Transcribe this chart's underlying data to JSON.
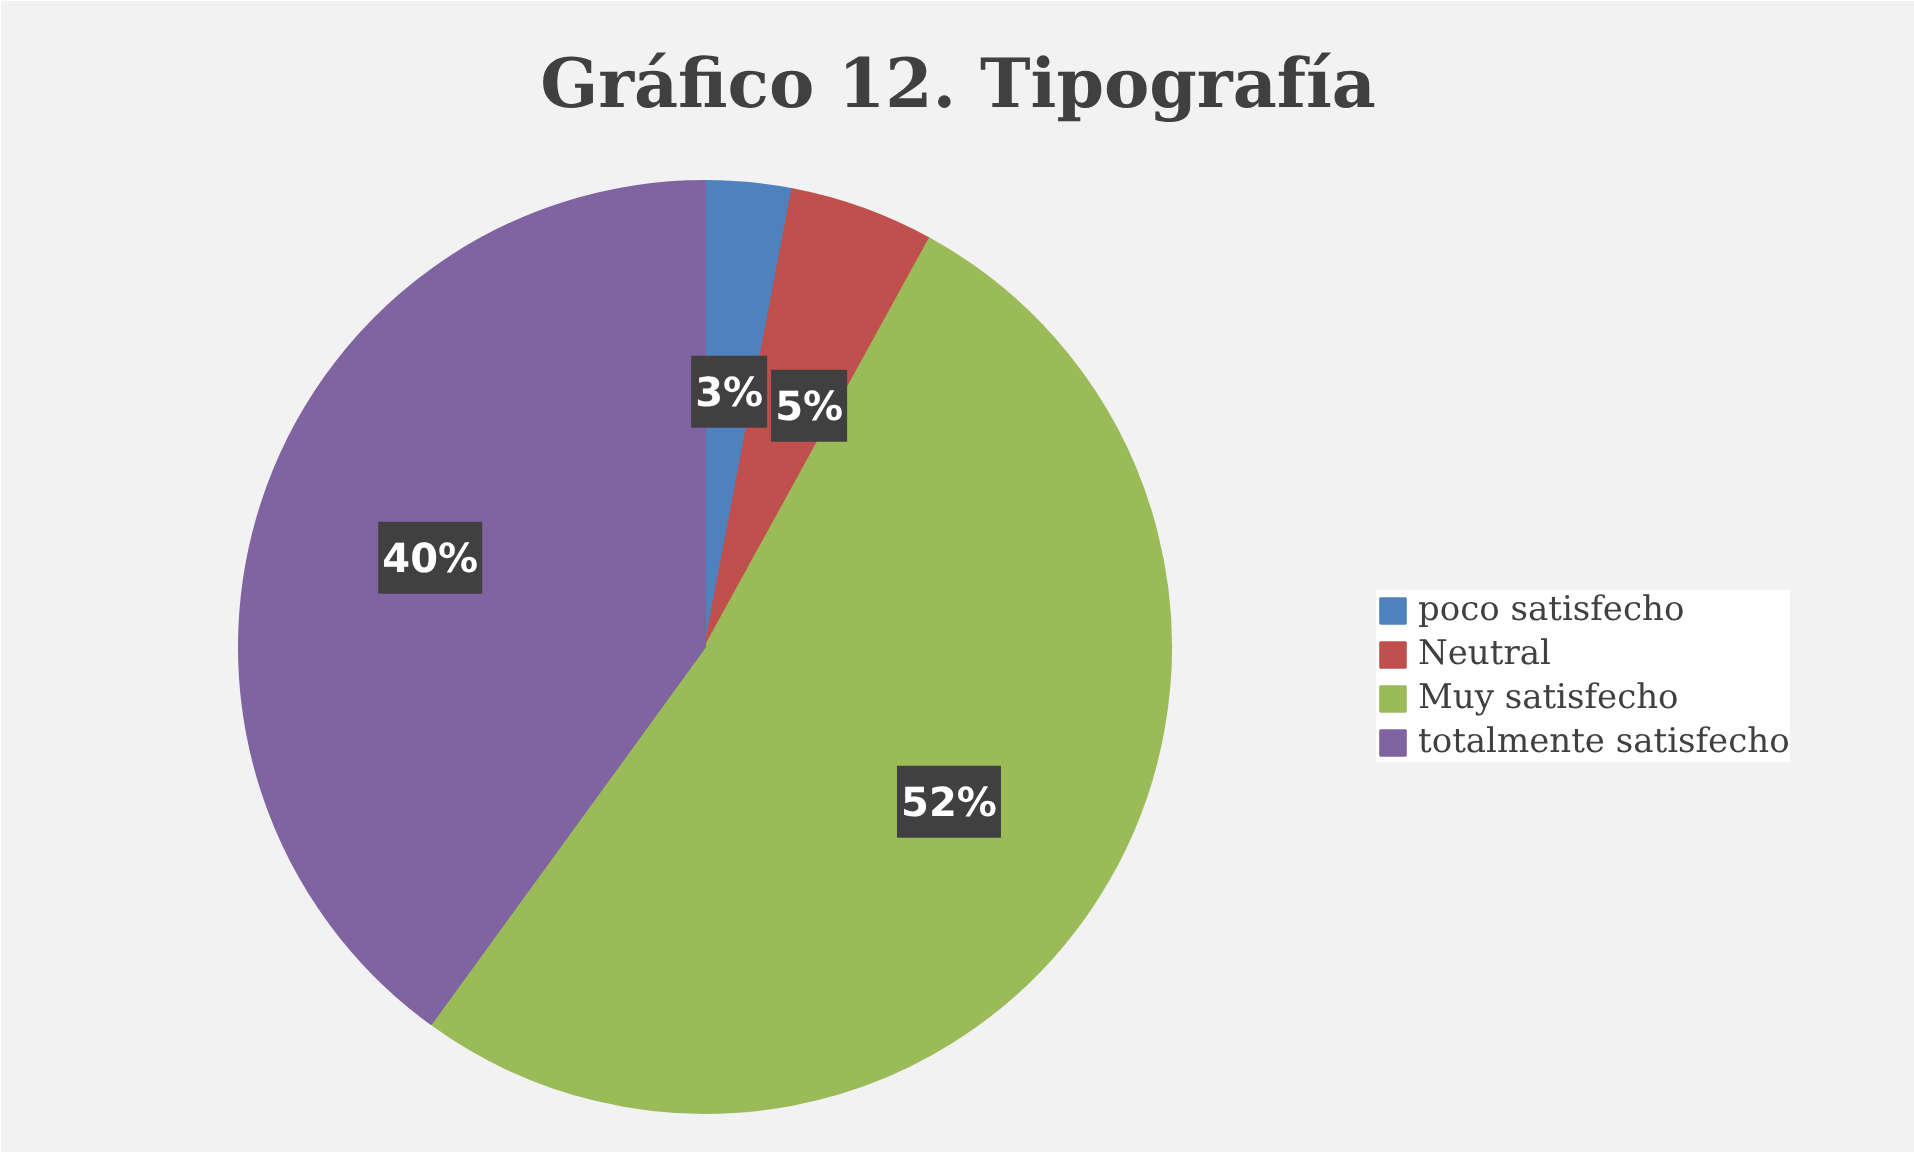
{
  "chart_data": {
    "type": "pie",
    "title": "Gráfico 12. Tipografía",
    "categories": [
      "poco satisfecho",
      "Neutral",
      "Muy satisfecho",
      "totalmente satisfecho"
    ],
    "values": [
      3,
      5,
      52,
      40
    ],
    "colors": [
      "#4f81bd",
      "#c0504d",
      "#9bbb59",
      "#8064a2"
    ],
    "value_labels": [
      "3%",
      "5%",
      "52%",
      "40%"
    ],
    "legend": "right"
  }
}
